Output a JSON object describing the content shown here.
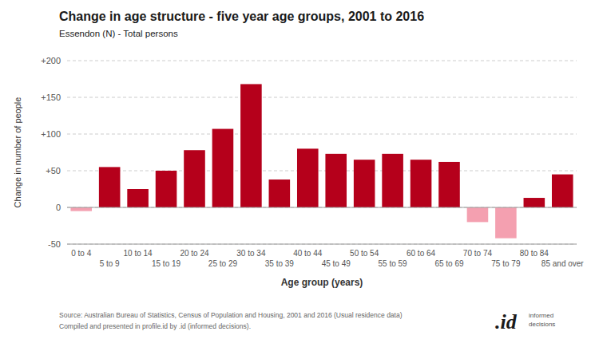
{
  "chart_data": {
    "type": "bar",
    "title": "Change in age structure - five year age groups, 2001 to 2016",
    "subtitle": "Essendon (N) - Total persons",
    "xlabel": "Age group (years)",
    "ylabel": "Change in number of people",
    "source": [
      "Source: Australian Bureau of Statistics, Census of Population and Housing, 2001 and 2016 (Usual residence data)",
      "Compiled and presented in profile.id by .id (informed decisions)."
    ],
    "annotations": [
      ".id",
      "informed\ndecisions"
    ],
    "categories": [
      "0 to 4",
      "5 to 9",
      "10 to 14",
      "15 to 19",
      "20 to 24",
      "25 to 29",
      "30 to 34",
      "35 to 39",
      "40 to 44",
      "45 to 49",
      "50 to 54",
      "55 to 59",
      "60 to 64",
      "65 to 69",
      "70 to 74",
      "75 to 79",
      "80 to 84",
      "85 and over"
    ],
    "values": [
      -5,
      55,
      25,
      50,
      78,
      107,
      168,
      38,
      80,
      73,
      65,
      73,
      65,
      62,
      -20,
      -42,
      13,
      45
    ],
    "colors": [
      "#f4a0b0",
      "#b5001b",
      "#b5001b",
      "#b5001b",
      "#b5001b",
      "#b5001b",
      "#b5001b",
      "#b5001b",
      "#b5001b",
      "#b5001b",
      "#b5001b",
      "#b5001b",
      "#b5001b",
      "#b5001b",
      "#f4a0b0",
      "#f4a0b0",
      "#b5001b",
      "#b5001b"
    ],
    "ylim": [
      -50,
      200
    ],
    "yticks": [
      -50,
      0,
      {
        "value": 50,
        "label": "+50"
      },
      {
        "value": 100,
        "label": "+100"
      },
      {
        "value": 150,
        "label": "+150"
      },
      {
        "value": 200,
        "label": "+200"
      }
    ],
    "grid": true
  }
}
